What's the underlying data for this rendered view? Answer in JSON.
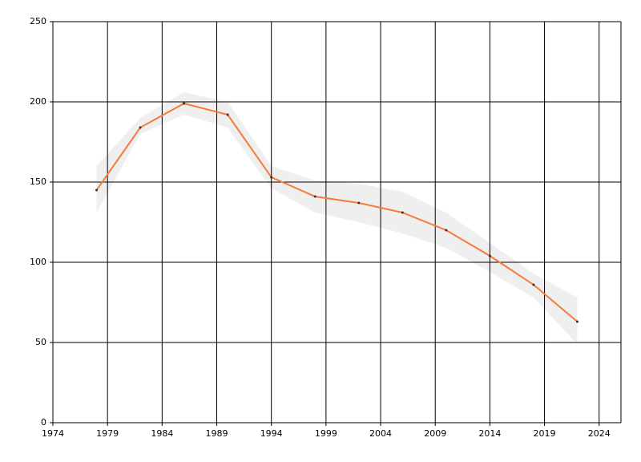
{
  "chart_data": {
    "type": "line",
    "x": [
      1978,
      1982,
      1986,
      1990,
      1994,
      1998,
      2002,
      2006,
      2010,
      2014,
      2018,
      2022
    ],
    "values": [
      145,
      184,
      199,
      192,
      153,
      141,
      137,
      131,
      120,
      104,
      86,
      63
    ],
    "upper": [
      160,
      190,
      206,
      200,
      160,
      151,
      149,
      144,
      131,
      112,
      93,
      78
    ],
    "lower": [
      131,
      180,
      192,
      184,
      146,
      131,
      125,
      118,
      109,
      94,
      78,
      49
    ],
    "color": "#f47b3b",
    "band_color": "#efefef",
    "xlim": [
      1974,
      2026
    ],
    "xticks": [
      1974,
      1979,
      1984,
      1989,
      1994,
      1999,
      2004,
      2009,
      2014,
      2019,
      2024
    ],
    "ylim": [
      0,
      250
    ],
    "yticks": [
      0,
      50,
      100,
      150,
      200,
      250
    ],
    "grid": true
  }
}
